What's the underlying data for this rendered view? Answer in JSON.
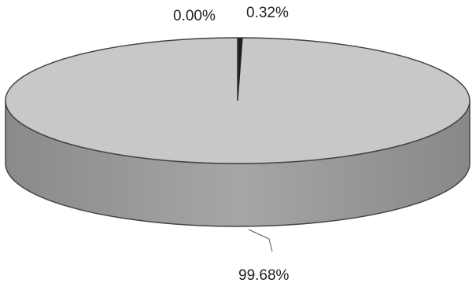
{
  "chart_data": {
    "type": "pie",
    "style": "3d",
    "slices": [
      {
        "label": "0.00%",
        "value": 0.0,
        "color": "#3a3a3a"
      },
      {
        "label": "0.32%",
        "value": 0.32,
        "color": "#1f1f1f"
      },
      {
        "label": "99.68%",
        "value": 99.68,
        "color": "#c8c8c8"
      }
    ],
    "side_color": "#9c9c9c",
    "legend": "none",
    "grid": false
  }
}
